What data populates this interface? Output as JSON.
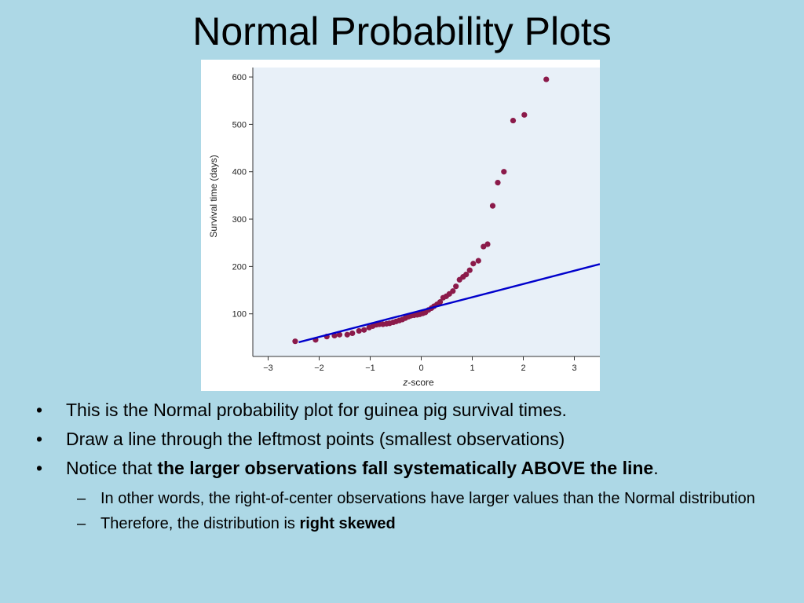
{
  "slide": {
    "title": "Normal Probability Plots",
    "bullets": [
      {
        "text": "This is the Normal probability plot for guinea pig survival times."
      },
      {
        "text": "Draw a line through the leftmost points (smallest observations)"
      },
      {
        "pre": "Notice that ",
        "bold": "the larger observations fall systematically ABOVE the line",
        "post": "."
      }
    ],
    "sub_bullets": [
      {
        "text": "In other words, the right-of-center observations have larger values than the Normal distribution"
      },
      {
        "pre": "Therefore, the distribution is ",
        "bold": "right skewed"
      }
    ],
    "bullet_glyph": "•",
    "sub_bullet_glyph": "–"
  },
  "chart_data": {
    "type": "scatter",
    "xlabel": "z-score",
    "xlabel_italic": "z",
    "xlabel_rest": "-score",
    "ylabel": "Survival time (days)",
    "xlim": [
      -3.3,
      3.5
    ],
    "ylim": [
      10,
      620
    ],
    "x_ticks": [
      -3,
      -2,
      -1,
      0,
      1,
      2,
      3
    ],
    "x_tick_labels": [
      "−3",
      "−2",
      "−1",
      "0",
      "1",
      "2",
      "3"
    ],
    "y_ticks": [
      100,
      200,
      300,
      400,
      500,
      600
    ],
    "y_tick_labels": [
      "100",
      "200",
      "300",
      "400",
      "500",
      "600"
    ],
    "plot_background": "#e8f0f8",
    "point_color": "#8b1a4a",
    "line_color": "#0000cc",
    "points": [
      {
        "x": -2.47,
        "y": 42
      },
      {
        "x": -2.07,
        "y": 45
      },
      {
        "x": -1.85,
        "y": 52
      },
      {
        "x": -1.7,
        "y": 54
      },
      {
        "x": -1.6,
        "y": 56
      },
      {
        "x": -1.45,
        "y": 56
      },
      {
        "x": -1.35,
        "y": 59
      },
      {
        "x": -1.22,
        "y": 64
      },
      {
        "x": -1.12,
        "y": 66
      },
      {
        "x": -1.02,
        "y": 71
      },
      {
        "x": -0.95,
        "y": 74
      },
      {
        "x": -0.88,
        "y": 77
      },
      {
        "x": -0.82,
        "y": 78
      },
      {
        "x": -0.75,
        "y": 78
      },
      {
        "x": -0.68,
        "y": 79
      },
      {
        "x": -0.62,
        "y": 80
      },
      {
        "x": -0.55,
        "y": 82
      },
      {
        "x": -0.49,
        "y": 84
      },
      {
        "x": -0.43,
        "y": 86
      },
      {
        "x": -0.37,
        "y": 88
      },
      {
        "x": -0.31,
        "y": 91
      },
      {
        "x": -0.25,
        "y": 94
      },
      {
        "x": -0.2,
        "y": 96
      },
      {
        "x": -0.14,
        "y": 97
      },
      {
        "x": -0.08,
        "y": 98
      },
      {
        "x": -0.03,
        "y": 99
      },
      {
        "x": 0.03,
        "y": 101
      },
      {
        "x": 0.08,
        "y": 103
      },
      {
        "x": 0.14,
        "y": 108
      },
      {
        "x": 0.2,
        "y": 112
      },
      {
        "x": 0.25,
        "y": 116
      },
      {
        "x": 0.31,
        "y": 120
      },
      {
        "x": 0.37,
        "y": 125
      },
      {
        "x": 0.43,
        "y": 134
      },
      {
        "x": 0.49,
        "y": 137
      },
      {
        "x": 0.55,
        "y": 142
      },
      {
        "x": 0.62,
        "y": 148
      },
      {
        "x": 0.68,
        "y": 158
      },
      {
        "x": 0.75,
        "y": 172
      },
      {
        "x": 0.82,
        "y": 178
      },
      {
        "x": 0.88,
        "y": 183
      },
      {
        "x": 0.95,
        "y": 192
      },
      {
        "x": 1.02,
        "y": 206
      },
      {
        "x": 1.12,
        "y": 212
      },
      {
        "x": 1.22,
        "y": 242
      },
      {
        "x": 1.3,
        "y": 247
      },
      {
        "x": 1.4,
        "y": 328
      },
      {
        "x": 1.5,
        "y": 377
      },
      {
        "x": 1.62,
        "y": 400
      },
      {
        "x": 1.8,
        "y": 508
      },
      {
        "x": 2.02,
        "y": 520
      },
      {
        "x": 2.45,
        "y": 595
      }
    ],
    "fitted_line": {
      "x": [
        -2.4,
        3.5
      ],
      "y": [
        40,
        205
      ]
    }
  }
}
